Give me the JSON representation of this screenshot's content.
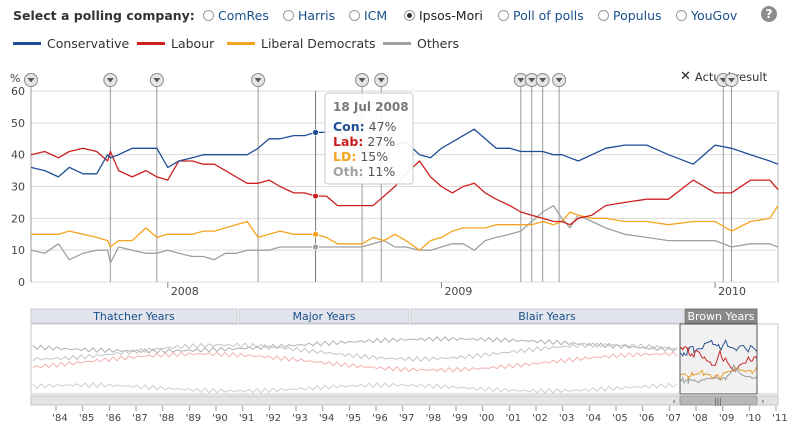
{
  "selector": {
    "label": "Select a polling company:",
    "options": [
      "ComRes",
      "Harris",
      "ICM",
      "Ipsos-Mori",
      "Poll of polls",
      "Populus",
      "YouGov"
    ],
    "selected": "Ipsos-Mori",
    "help_label": "?"
  },
  "legend": [
    {
      "name": "Conservative",
      "color": "#1f4e96"
    },
    {
      "name": "Labour",
      "color": "#cc2020"
    },
    {
      "name": "Liberal Democrats",
      "color": "#f5a41f"
    },
    {
      "name": "Others",
      "color": "#a0a0a0"
    }
  ],
  "actual_result_label": "Actual result",
  "tooltip": {
    "date": "18 Jul 2008",
    "rows": [
      {
        "label": "Con:",
        "value": "47%",
        "color": "#1f4e96"
      },
      {
        "label": "Lab:",
        "value": "27%",
        "color": "#cc2020"
      },
      {
        "label": "LD:",
        "value": "15%",
        "color": "#f5a41f"
      },
      {
        "label": "Oth:",
        "value": "11%",
        "color": "#a0a0a0"
      }
    ]
  },
  "eras": [
    "Thatcher Years",
    "Major Years",
    "Blair Years",
    "Brown Years"
  ],
  "overview_years": [
    "'84",
    "'85",
    "'86",
    "'87",
    "'88",
    "'89",
    "'90",
    "'91",
    "'92",
    "'93",
    "'94",
    "'95",
    "'96",
    "'97",
    "'98",
    "'99",
    "'00",
    "'01",
    "'02",
    "'03",
    "'04",
    "'05",
    "'06",
    "'07",
    "'08",
    "'09",
    "'10",
    "'11"
  ],
  "chart_data": {
    "type": "line",
    "ylabel": "%",
    "ylim": [
      0,
      60
    ],
    "yticks": [
      0,
      10,
      20,
      30,
      40,
      50,
      60
    ],
    "xlim": [
      2007.5,
      2010.23
    ],
    "xticks": [
      {
        "value": 2008.0,
        "label": "2008"
      },
      {
        "value": 2009.0,
        "label": "2009"
      },
      {
        "value": 2010.0,
        "label": "2010"
      }
    ],
    "event_markers": [
      2007.5,
      2007.79,
      2007.96,
      2008.33,
      2008.71,
      2008.78,
      2009.29,
      2009.33,
      2009.37,
      2009.43,
      2010.03,
      2010.06
    ],
    "highlight_x": 2008.54,
    "x": [
      2007.5,
      2007.55,
      2007.6,
      2007.64,
      2007.69,
      2007.74,
      2007.78,
      2007.79,
      2007.82,
      2007.87,
      2007.92,
      2007.96,
      2008.0,
      2008.04,
      2008.09,
      2008.13,
      2008.17,
      2008.21,
      2008.25,
      2008.29,
      2008.33,
      2008.37,
      2008.41,
      2008.46,
      2008.5,
      2008.54,
      2008.58,
      2008.62,
      2008.67,
      2008.71,
      2008.75,
      2008.79,
      2008.83,
      2008.87,
      2008.92,
      2008.96,
      2009.0,
      2009.04,
      2009.08,
      2009.12,
      2009.16,
      2009.2,
      2009.25,
      2009.29,
      2009.33,
      2009.37,
      2009.41,
      2009.44,
      2009.47,
      2009.5,
      2009.55,
      2009.6,
      2009.67,
      2009.75,
      2009.83,
      2009.92,
      2010.0,
      2010.06,
      2010.13,
      2010.2,
      2010.23
    ],
    "series": [
      {
        "name": "Conservative",
        "color": "#1f4e96",
        "values": [
          36,
          35,
          33,
          36,
          34,
          34,
          40,
          39,
          40,
          42,
          42,
          42,
          36,
          38,
          39,
          40,
          40,
          40,
          40,
          40,
          42,
          45,
          45,
          46,
          46,
          47,
          47,
          48,
          44,
          44,
          44,
          43,
          43,
          44,
          40,
          39,
          42,
          44,
          46,
          48,
          45,
          42,
          42,
          41,
          41,
          41,
          40,
          40,
          39,
          38,
          40,
          42,
          43,
          43,
          40,
          37,
          43,
          42,
          40,
          38,
          37
        ]
      },
      {
        "name": "Labour",
        "color": "#cc2020",
        "values": [
          40,
          41,
          39,
          41,
          42,
          41,
          38,
          41,
          35,
          33,
          35,
          33,
          32,
          38,
          38,
          37,
          37,
          35,
          33,
          31,
          31,
          32,
          30,
          28,
          28,
          27,
          27,
          24,
          24,
          24,
          24,
          27,
          30,
          34,
          38,
          33,
          30,
          28,
          30,
          31,
          28,
          26,
          24,
          22,
          21,
          20,
          19,
          19,
          18,
          20,
          21,
          24,
          25,
          26,
          26,
          32,
          28,
          28,
          32,
          32,
          29
        ]
      },
      {
        "name": "Liberal Democrats",
        "color": "#f5a41f",
        "values": [
          15,
          15,
          15,
          16,
          15,
          14,
          13,
          11,
          13,
          13,
          17,
          14,
          15,
          15,
          15,
          16,
          16,
          17,
          18,
          19,
          14,
          15,
          16,
          15,
          15,
          15,
          14,
          12,
          12,
          12,
          14,
          13,
          15,
          13,
          10,
          13,
          14,
          16,
          17,
          17,
          17,
          18,
          18,
          18,
          18,
          19,
          18,
          19,
          22,
          21,
          20,
          20,
          19,
          19,
          18,
          19,
          19,
          16,
          19,
          20,
          24
        ]
      },
      {
        "name": "Others",
        "color": "#a0a0a0",
        "values": [
          10,
          9,
          12,
          7,
          9,
          10,
          10,
          6,
          11,
          10,
          9,
          9,
          10,
          9,
          8,
          8,
          7,
          9,
          9,
          10,
          10,
          10,
          11,
          11,
          11,
          11,
          11,
          11,
          11,
          11,
          12,
          13,
          11,
          11,
          10,
          10,
          11,
          12,
          12,
          10,
          13,
          14,
          15,
          16,
          19,
          22,
          24,
          20,
          17,
          21,
          19,
          17,
          15,
          14,
          13,
          13,
          13,
          11,
          12,
          12,
          11
        ]
      }
    ]
  }
}
